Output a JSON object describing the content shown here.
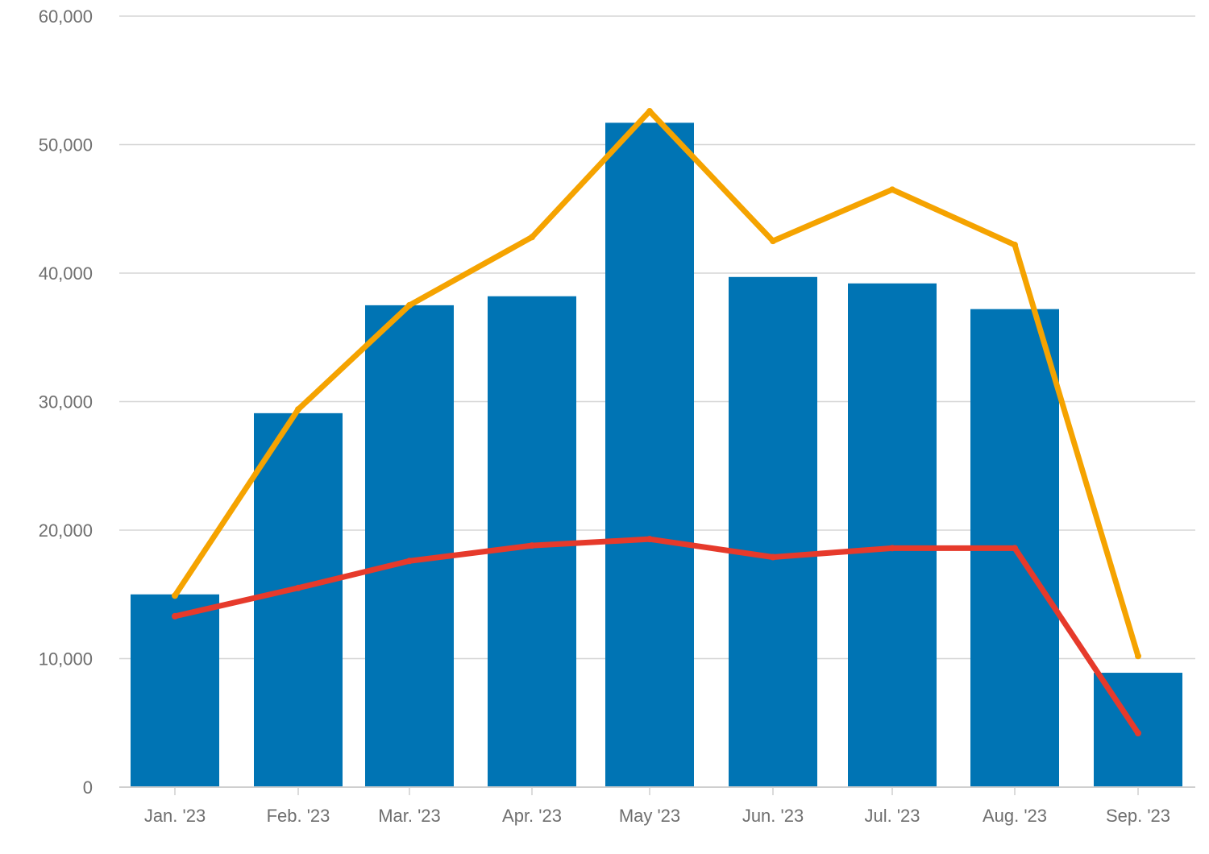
{
  "chart_data": {
    "type": "bar",
    "title": "",
    "xlabel": "",
    "ylabel": "",
    "categories": [
      "Jan. '23",
      "Feb. '23",
      "Mar. '23",
      "Apr. '23",
      "May '23",
      "Jun. '23",
      "Jul. '23",
      "Aug. '23",
      "Sep. '23"
    ],
    "ylim": [
      0,
      60000
    ],
    "yticks": [
      0,
      10000,
      20000,
      30000,
      40000,
      50000,
      60000
    ],
    "ytick_labels": [
      "0",
      "10,000",
      "20,000",
      "30,000",
      "40,000",
      "50,000",
      "60,000"
    ],
    "grid": true,
    "legend": "none",
    "series": [
      {
        "type": "bar",
        "color": "#0074B4",
        "values": [
          15000,
          29100,
          37500,
          38200,
          51700,
          39700,
          39200,
          37200,
          8900
        ]
      },
      {
        "type": "line",
        "color": "#F5A300",
        "values": [
          14900,
          29400,
          37500,
          42800,
          52600,
          42500,
          46500,
          42200,
          10200
        ]
      },
      {
        "type": "line",
        "color": "#E63A2B",
        "values": [
          13300,
          15500,
          17600,
          18800,
          19300,
          17900,
          18600,
          18600,
          4200
        ]
      }
    ]
  }
}
